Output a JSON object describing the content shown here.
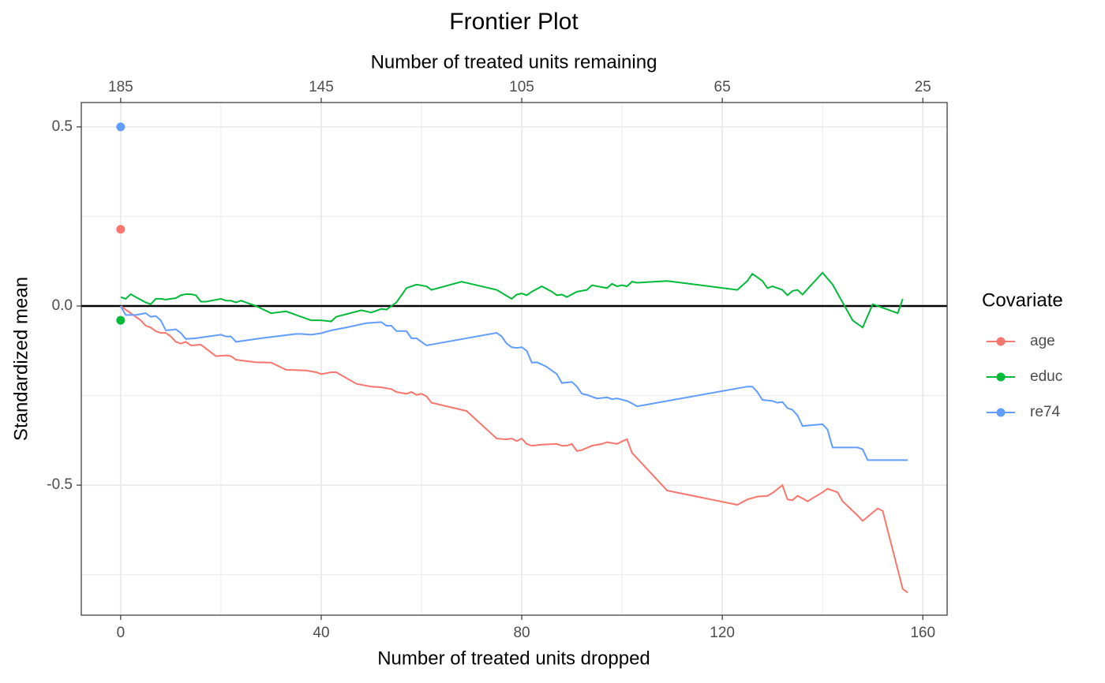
{
  "chart_data": {
    "type": "line",
    "title": "Frontier Plot",
    "xlabel": "Number of treated units dropped",
    "ylabel": "Standardized mean",
    "x2label": "Number of treated units remaining",
    "legend_title": "Covariate",
    "legend": "right",
    "grid": true,
    "xlim": [
      -7.85,
      164.85
    ],
    "xticks": [
      0,
      40,
      80,
      120,
      160
    ],
    "xminor": [
      20,
      60,
      100,
      140
    ],
    "x2lim": [
      192.85,
      20.15
    ],
    "x2ticks": [
      185,
      145,
      105,
      65,
      25
    ],
    "ylim": [
      -0.863,
      0.568
    ],
    "yticks": [
      -0.5,
      0.0,
      0.5
    ],
    "yminor": [
      -0.75,
      -0.25,
      0.25
    ],
    "hline": 0,
    "series": [
      {
        "name": "age",
        "color": "#F8766D",
        "point_x": 0,
        "point_y": 0.214,
        "x": [
          0,
          2,
          4,
          5,
          6,
          7,
          8,
          9,
          10,
          11,
          12,
          13,
          14,
          16,
          19,
          21,
          22,
          23,
          27,
          30,
          33,
          37,
          39,
          40,
          42,
          43,
          47,
          50,
          52,
          54,
          55,
          57,
          58,
          59,
          60,
          61,
          62,
          69,
          75,
          77,
          78,
          79,
          80,
          81,
          82,
          84,
          87,
          88,
          89,
          90,
          91,
          92,
          94,
          96,
          97,
          99,
          100,
          101,
          102,
          109,
          123,
          125,
          127,
          129,
          130,
          132,
          133,
          134,
          135,
          136,
          137,
          140,
          141,
          143,
          144,
          147,
          148,
          151,
          152,
          156,
          157
        ],
        "values": [
          0,
          -0.02,
          -0.04,
          -0.055,
          -0.06,
          -0.07,
          -0.075,
          -0.075,
          -0.085,
          -0.1,
          -0.105,
          -0.1,
          -0.11,
          -0.108,
          -0.14,
          -0.138,
          -0.14,
          -0.15,
          -0.157,
          -0.158,
          -0.178,
          -0.18,
          -0.185,
          -0.19,
          -0.185,
          -0.185,
          -0.217,
          -0.225,
          -0.227,
          -0.232,
          -0.24,
          -0.245,
          -0.24,
          -0.248,
          -0.245,
          -0.252,
          -0.27,
          -0.293,
          -0.37,
          -0.372,
          -0.37,
          -0.377,
          -0.37,
          -0.385,
          -0.39,
          -0.387,
          -0.385,
          -0.39,
          -0.39,
          -0.385,
          -0.405,
          -0.402,
          -0.39,
          -0.385,
          -0.38,
          -0.385,
          -0.378,
          -0.372,
          -0.41,
          -0.515,
          -0.555,
          -0.54,
          -0.532,
          -0.53,
          -0.522,
          -0.5,
          -0.54,
          -0.542,
          -0.53,
          -0.537,
          -0.545,
          -0.52,
          -0.51,
          -0.52,
          -0.545,
          -0.585,
          -0.6,
          -0.565,
          -0.572,
          -0.79,
          -0.8
        ]
      },
      {
        "name": "educ",
        "color": "#00BA38",
        "point_x": 0,
        "point_y": -0.04,
        "x": [
          0,
          1,
          2,
          3,
          5,
          6,
          7,
          8,
          9,
          10,
          11,
          12,
          13,
          14,
          15,
          16,
          17,
          20,
          21,
          22,
          23,
          24,
          27,
          30,
          33,
          38,
          40,
          42,
          43,
          48,
          50,
          52,
          53,
          55,
          57,
          59,
          61,
          62,
          68,
          75,
          78,
          79,
          80,
          81,
          82,
          84,
          86,
          87,
          88,
          89,
          91,
          93,
          94,
          97,
          98,
          99,
          100,
          101,
          102,
          103,
          109,
          123,
          125,
          126,
          128,
          129,
          130,
          132,
          133,
          134,
          135,
          136,
          140,
          142,
          146,
          148,
          150,
          155,
          156
        ],
        "values": [
          0.025,
          0.02,
          0.033,
          0.025,
          0.01,
          0.005,
          0.02,
          0.02,
          0.018,
          0.02,
          0.022,
          0.03,
          0.033,
          0.033,
          0.03,
          0.012,
          0.012,
          0.02,
          0.015,
          0.015,
          0.01,
          0.015,
          0,
          -0.02,
          -0.015,
          -0.04,
          -0.04,
          -0.043,
          -0.03,
          -0.012,
          -0.018,
          -0.008,
          -0.01,
          0.01,
          0.05,
          0.06,
          0.055,
          0.045,
          0.068,
          0.045,
          0.02,
          0.032,
          0.035,
          0.03,
          0.04,
          0.055,
          0.04,
          0.03,
          0.032,
          0.025,
          0.04,
          0.045,
          0.058,
          0.05,
          0.062,
          0.055,
          0.058,
          0.055,
          0.068,
          0.065,
          0.07,
          0.045,
          0.07,
          0.09,
          0.07,
          0.05,
          0.055,
          0.045,
          0.03,
          0.042,
          0.045,
          0.032,
          0.093,
          0.06,
          -0.04,
          -0.06,
          0.005,
          -0.02,
          0.02
        ]
      },
      {
        "name": "re74",
        "color": "#619CFF",
        "point_x": 0,
        "point_y": 0.5,
        "x": [
          0,
          1,
          3,
          5,
          6,
          7,
          8,
          9,
          10,
          11,
          12,
          13,
          15,
          20,
          21,
          22,
          23,
          28,
          35,
          36,
          38,
          40,
          42,
          45,
          49,
          52,
          53,
          54,
          55,
          57,
          58,
          59,
          60,
          61,
          63,
          75,
          76,
          77,
          78,
          79,
          80,
          81,
          82,
          83,
          84,
          85,
          86,
          87,
          88,
          90,
          91,
          92,
          93,
          95,
          97,
          98,
          99,
          101,
          102,
          103,
          109,
          125,
          126,
          127,
          128,
          130,
          131,
          132,
          133,
          134,
          135,
          136,
          140,
          141,
          142,
          147,
          148,
          149,
          157
        ],
        "values": [
          0,
          -0.025,
          -0.025,
          -0.02,
          -0.03,
          -0.028,
          -0.04,
          -0.068,
          -0.067,
          -0.065,
          -0.075,
          -0.092,
          -0.09,
          -0.08,
          -0.085,
          -0.085,
          -0.1,
          -0.09,
          -0.078,
          -0.078,
          -0.08,
          -0.076,
          -0.068,
          -0.06,
          -0.048,
          -0.045,
          -0.055,
          -0.055,
          -0.07,
          -0.07,
          -0.09,
          -0.09,
          -0.1,
          -0.11,
          -0.105,
          -0.075,
          -0.085,
          -0.105,
          -0.115,
          -0.117,
          -0.115,
          -0.125,
          -0.158,
          -0.157,
          -0.163,
          -0.17,
          -0.18,
          -0.19,
          -0.215,
          -0.212,
          -0.225,
          -0.245,
          -0.248,
          -0.258,
          -0.255,
          -0.26,
          -0.258,
          -0.265,
          -0.272,
          -0.28,
          -0.265,
          -0.225,
          -0.225,
          -0.24,
          -0.262,
          -0.265,
          -0.27,
          -0.268,
          -0.285,
          -0.29,
          -0.305,
          -0.335,
          -0.33,
          -0.345,
          -0.395,
          -0.395,
          -0.4,
          -0.43,
          -0.43
        ]
      }
    ]
  }
}
